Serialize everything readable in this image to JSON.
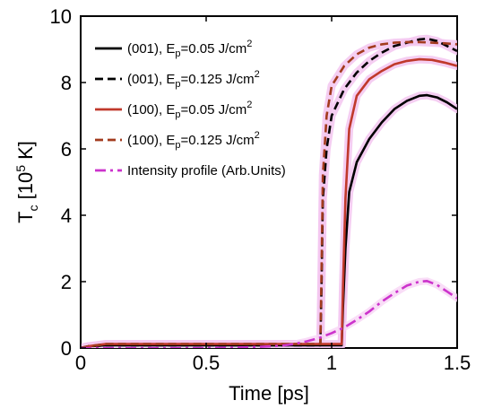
{
  "chart_data": {
    "type": "line",
    "xlabel": "Time  [ps]",
    "ylabel": {
      "main": "T",
      "sub": "c",
      "unit_prefix": " [10",
      "unit_exp": "5",
      "unit_suffix": " K]"
    },
    "xlim": [
      0,
      1.5
    ],
    "ylim": [
      0,
      10
    ],
    "x_ticks": [
      "0",
      "0.5",
      "1",
      "1.5"
    ],
    "x_tick_values": [
      0,
      0.5,
      1,
      1.5
    ],
    "y_ticks": [
      "0",
      "2",
      "4",
      "6",
      "8",
      "10"
    ],
    "y_tick_values": [
      0,
      2,
      4,
      6,
      8,
      10
    ],
    "grid": false,
    "legend_position": "top-left",
    "series": [
      {
        "id": "s001_low",
        "legend": {
          "pre": "(001), E",
          "sub": "p",
          "mid": "=0.05 J/cm",
          "sup": "2"
        },
        "color": "#000000",
        "dash": "solid",
        "x": [
          0,
          0.03,
          0.1,
          0.3,
          0.6,
          0.9,
          1.04,
          1.045,
          1.055,
          1.07,
          1.1,
          1.15,
          1.2,
          1.25,
          1.3,
          1.35,
          1.38,
          1.42,
          1.46,
          1.5
        ],
        "y": [
          0,
          0.05,
          0.08,
          0.08,
          0.08,
          0.08,
          0.08,
          1.2,
          3.0,
          4.7,
          5.6,
          6.3,
          6.8,
          7.2,
          7.45,
          7.6,
          7.62,
          7.55,
          7.4,
          7.2
        ]
      },
      {
        "id": "s001_high",
        "legend": {
          "pre": "(001), E",
          "sub": "p",
          "mid": "=0.125 J/cm",
          "sup": "2"
        },
        "color": "#000000",
        "dash": "dashed",
        "x": [
          0,
          0.03,
          0.1,
          0.3,
          0.6,
          0.9,
          0.955,
          0.96,
          0.965,
          0.98,
          1.0,
          1.05,
          1.1,
          1.15,
          1.2,
          1.25,
          1.3,
          1.35,
          1.38,
          1.42,
          1.46,
          1.5
        ],
        "y": [
          0,
          0.05,
          0.08,
          0.08,
          0.08,
          0.08,
          0.08,
          2.0,
          4.5,
          6.0,
          7.0,
          7.8,
          8.3,
          8.65,
          8.9,
          9.1,
          9.2,
          9.3,
          9.32,
          9.25,
          9.1,
          8.95
        ]
      },
      {
        "id": "s100_low",
        "legend": {
          "pre": "(100), E",
          "sub": "p",
          "mid": "=0.05 J/cm",
          "sup": "2"
        },
        "color": "#c0392b",
        "dash": "solid",
        "x": [
          0,
          0.03,
          0.1,
          0.3,
          0.6,
          0.9,
          1.04,
          1.045,
          1.055,
          1.07,
          1.1,
          1.15,
          1.2,
          1.25,
          1.3,
          1.35,
          1.4,
          1.45,
          1.5
        ],
        "y": [
          0,
          0.05,
          0.12,
          0.12,
          0.12,
          0.12,
          0.12,
          1.8,
          4.5,
          6.6,
          7.6,
          8.1,
          8.35,
          8.55,
          8.65,
          8.7,
          8.68,
          8.6,
          8.5
        ]
      },
      {
        "id": "s100_high",
        "legend": {
          "pre": "(100), E",
          "sub": "p",
          "mid": "=0.125 J/cm",
          "sup": "2"
        },
        "color": "#a33b1e",
        "dash": "dashed",
        "x": [
          0,
          0.03,
          0.1,
          0.3,
          0.6,
          0.9,
          0.955,
          0.96,
          0.965,
          0.98,
          1.0,
          1.05,
          1.1,
          1.15,
          1.2,
          1.25,
          1.3,
          1.35,
          1.4,
          1.45,
          1.5
        ],
        "y": [
          0,
          0.05,
          0.12,
          0.12,
          0.12,
          0.12,
          0.12,
          2.5,
          5.2,
          7.0,
          7.9,
          8.5,
          8.85,
          9.05,
          9.15,
          9.2,
          9.22,
          9.22,
          9.2,
          9.18,
          9.15
        ]
      },
      {
        "id": "intensity",
        "legend": {
          "pre": "Intensity profile (Arb.Units)",
          "sub": "",
          "mid": "",
          "sup": ""
        },
        "color": "#cc33cc",
        "dash": "dashdot",
        "x": [
          0,
          0.1,
          0.2,
          0.3,
          0.4,
          0.5,
          0.6,
          0.7,
          0.8,
          0.85,
          0.9,
          0.95,
          1.0,
          1.05,
          1.1,
          1.15,
          1.2,
          1.25,
          1.3,
          1.35,
          1.38,
          1.42,
          1.46,
          1.5
        ],
        "y": [
          0.0,
          0.0,
          0.0,
          0.0,
          0.0,
          0.0,
          0.01,
          0.03,
          0.07,
          0.12,
          0.2,
          0.3,
          0.45,
          0.62,
          0.85,
          1.1,
          1.4,
          1.65,
          1.88,
          2.0,
          2.02,
          1.9,
          1.7,
          1.5
        ]
      }
    ]
  }
}
